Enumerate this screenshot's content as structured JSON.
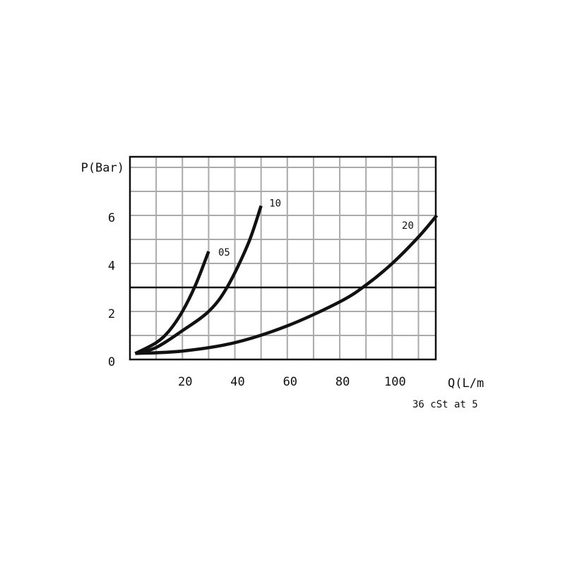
{
  "chart_data": {
    "type": "line",
    "y_label": "P(Bar)",
    "x_label": "Q(L/m",
    "note": "36 cSt at 5",
    "xlim": [
      0,
      116.6
    ],
    "ylim": [
      0,
      8.44
    ],
    "xticks": [
      20,
      40,
      60,
      80,
      100
    ],
    "yticks": [
      0,
      2,
      4,
      6
    ],
    "xgrid": [
      10,
      20,
      30,
      40,
      50,
      60,
      70,
      80,
      90,
      100,
      110
    ],
    "ygrid": [
      1,
      2,
      3,
      4,
      5,
      6,
      7,
      8
    ],
    "hline": 3,
    "grid": true,
    "grid_color": "#aaaaaa",
    "series": [
      {
        "name": "05",
        "color": "#111111",
        "x": [
          2,
          10,
          15,
          20,
          25,
          30
        ],
        "values": [
          0.25,
          0.7,
          1.2,
          2.0,
          3.1,
          4.5
        ]
      },
      {
        "name": "10",
        "color": "#111111",
        "x": [
          2,
          10,
          20,
          30,
          37,
          45,
          50
        ],
        "values": [
          0.25,
          0.5,
          1.2,
          2.0,
          3.0,
          4.8,
          6.4
        ]
      },
      {
        "name": "20",
        "color": "#111111",
        "x": [
          2,
          20,
          40,
          60,
          80,
          90,
          100,
          110,
          117
        ],
        "values": [
          0.25,
          0.35,
          0.7,
          1.4,
          2.4,
          3.1,
          4.0,
          5.1,
          6.0
        ]
      }
    ]
  }
}
